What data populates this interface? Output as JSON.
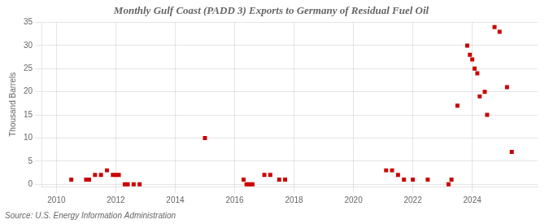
{
  "chart_data": {
    "type": "scatter",
    "title": "Monthly Gulf Coast (PADD 3) Exports to Germany of Residual Fuel Oil",
    "ylabel": "Thousand Barrels",
    "annotations": [
      "Source: U.S. Energy Information Administration"
    ],
    "x": [
      2010.5,
      2011.0,
      2011.1,
      2011.3,
      2011.5,
      2011.7,
      2011.9,
      2012.0,
      2012.1,
      2012.3,
      2012.4,
      2012.6,
      2012.8,
      2015.0,
      2016.3,
      2016.4,
      2016.5,
      2016.6,
      2017.0,
      2017.2,
      2017.5,
      2017.7,
      2021.1,
      2021.3,
      2021.5,
      2021.7,
      2022.0,
      2022.5,
      2023.2,
      2023.3,
      2023.5,
      2023.83,
      2023.92,
      2024.0,
      2024.08,
      2024.17,
      2024.25,
      2024.42,
      2024.5,
      2024.75,
      2024.92,
      2025.17,
      2025.33
    ],
    "values": [
      1,
      1,
      1,
      2,
      2,
      3,
      2,
      2,
      2,
      0,
      0,
      0,
      0,
      10,
      1,
      0,
      0,
      0,
      2,
      2,
      1,
      1,
      3,
      3,
      2,
      1,
      1,
      1,
      0,
      1,
      17,
      30,
      28,
      27,
      25,
      24,
      19,
      20,
      15,
      34,
      33,
      21,
      7
    ],
    "color": "#cc0000",
    "marker": "square",
    "xlim": [
      2009.5,
      2026.2
    ],
    "xticks": [
      2010,
      2012,
      2014,
      2016,
      2018,
      2020,
      2022,
      2024
    ],
    "ylim": [
      -0.5,
      35
    ],
    "yticks": [
      0,
      5,
      10,
      15,
      20,
      25,
      30,
      35
    ],
    "grid": true
  }
}
